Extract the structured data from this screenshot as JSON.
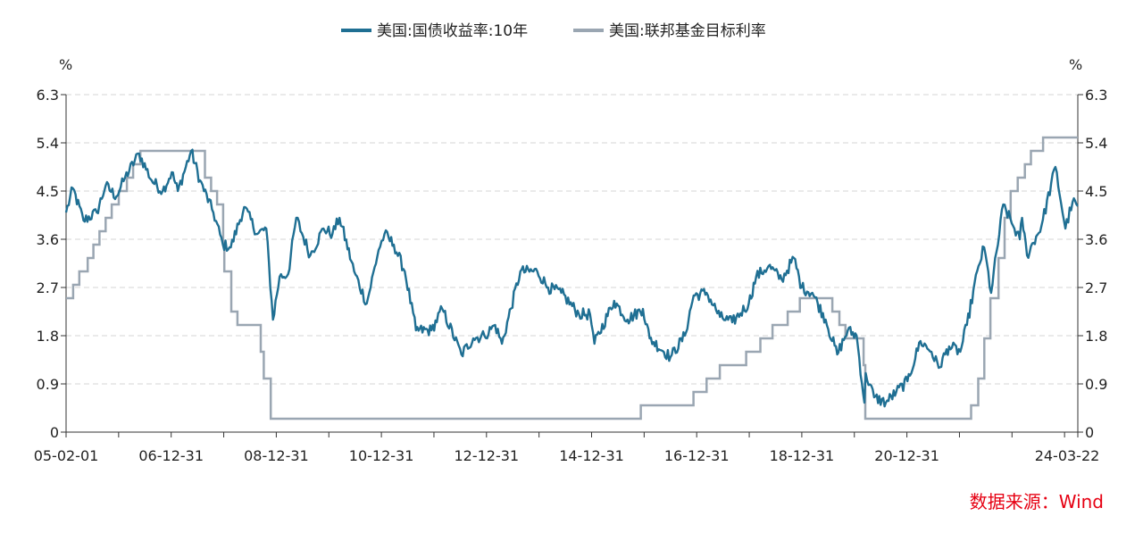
{
  "chart_data": {
    "type": "line",
    "title": "",
    "source": "数据来源：Wind",
    "y_unit_left": "%",
    "y_unit_right": "%",
    "ylim": [
      0,
      6.3
    ],
    "yticks": [
      "0",
      "0.9",
      "1.8",
      "2.7",
      "3.6",
      "4.5",
      "5.4",
      "6.3"
    ],
    "xticks": [
      "05-02-01",
      "06-12-31",
      "08-12-31",
      "10-12-31",
      "12-12-31",
      "14-12-31",
      "16-12-31",
      "18-12-31",
      "20-12-31",
      "24-03-22"
    ],
    "x_range": [
      "2005-02-01",
      "2024-03-22"
    ],
    "grid": true,
    "legend_position": "top",
    "series": [
      {
        "name": "美国:国债收益率:10年",
        "color": "#1f6f93",
        "points": [
          [
            "2005-02-01",
            4.1
          ],
          [
            "2005-03-20",
            4.55
          ],
          [
            "2005-06-01",
            3.95
          ],
          [
            "2005-09-01",
            4.1
          ],
          [
            "2005-11-01",
            4.6
          ],
          [
            "2006-01-15",
            4.4
          ],
          [
            "2006-03-15",
            4.75
          ],
          [
            "2006-06-20",
            5.2
          ],
          [
            "2006-09-15",
            4.7
          ],
          [
            "2006-11-30",
            4.5
          ],
          [
            "2007-02-01",
            4.85
          ],
          [
            "2007-03-15",
            4.5
          ],
          [
            "2007-06-15",
            5.25
          ],
          [
            "2007-08-15",
            4.7
          ],
          [
            "2007-11-15",
            4.1
          ],
          [
            "2008-01-20",
            3.5
          ],
          [
            "2008-03-15",
            3.45
          ],
          [
            "2008-06-15",
            4.2
          ],
          [
            "2008-09-15",
            3.7
          ],
          [
            "2008-11-15",
            3.8
          ],
          [
            "2008-12-31",
            2.1
          ],
          [
            "2009-02-15",
            2.9
          ],
          [
            "2009-04-15",
            2.95
          ],
          [
            "2009-06-10",
            4.0
          ],
          [
            "2009-09-15",
            3.3
          ],
          [
            "2009-12-15",
            3.8
          ],
          [
            "2010-02-15",
            3.7
          ],
          [
            "2010-04-05",
            4.0
          ],
          [
            "2010-07-15",
            3.0
          ],
          [
            "2010-10-10",
            2.4
          ],
          [
            "2010-12-31",
            3.4
          ],
          [
            "2011-02-10",
            3.7
          ],
          [
            "2011-04-15",
            3.5
          ],
          [
            "2011-06-30",
            3.0
          ],
          [
            "2011-09-15",
            1.9
          ],
          [
            "2011-12-31",
            1.9
          ],
          [
            "2012-03-15",
            2.3
          ],
          [
            "2012-07-25",
            1.45
          ],
          [
            "2012-10-15",
            1.75
          ],
          [
            "2012-12-31",
            1.8
          ],
          [
            "2013-03-15",
            2.0
          ],
          [
            "2013-05-01",
            1.65
          ],
          [
            "2013-09-05",
            3.0
          ],
          [
            "2013-12-31",
            3.0
          ],
          [
            "2014-03-15",
            2.7
          ],
          [
            "2014-06-15",
            2.6
          ],
          [
            "2014-10-15",
            2.2
          ],
          [
            "2014-12-31",
            2.2
          ],
          [
            "2015-01-30",
            1.65
          ],
          [
            "2015-06-15",
            2.45
          ],
          [
            "2015-09-15",
            2.1
          ],
          [
            "2015-12-31",
            2.3
          ],
          [
            "2016-02-15",
            1.75
          ],
          [
            "2016-07-08",
            1.4
          ],
          [
            "2016-10-15",
            1.8
          ],
          [
            "2016-12-15",
            2.55
          ],
          [
            "2017-03-15",
            2.6
          ],
          [
            "2017-06-15",
            2.15
          ],
          [
            "2017-09-08",
            2.05
          ],
          [
            "2017-12-31",
            2.4
          ],
          [
            "2018-02-20",
            2.9
          ],
          [
            "2018-05-17",
            3.1
          ],
          [
            "2018-08-15",
            2.85
          ],
          [
            "2018-11-08",
            3.25
          ],
          [
            "2018-12-31",
            2.7
          ],
          [
            "2019-03-15",
            2.6
          ],
          [
            "2019-06-15",
            2.1
          ],
          [
            "2019-09-03",
            1.45
          ],
          [
            "2019-11-15",
            1.9
          ],
          [
            "2020-01-15",
            1.8
          ],
          [
            "2020-03-09",
            0.55
          ],
          [
            "2020-03-18",
            1.1
          ],
          [
            "2020-05-15",
            0.65
          ],
          [
            "2020-08-04",
            0.55
          ],
          [
            "2020-10-15",
            0.75
          ],
          [
            "2020-12-31",
            0.95
          ],
          [
            "2021-03-31",
            1.7
          ],
          [
            "2021-06-15",
            1.5
          ],
          [
            "2021-08-04",
            1.2
          ],
          [
            "2021-10-15",
            1.6
          ],
          [
            "2021-12-31",
            1.5
          ],
          [
            "2022-02-15",
            2.0
          ],
          [
            "2022-05-06",
            3.1
          ],
          [
            "2022-06-14",
            3.45
          ],
          [
            "2022-08-01",
            2.6
          ],
          [
            "2022-10-24",
            4.25
          ],
          [
            "2022-12-31",
            3.85
          ],
          [
            "2023-02-15",
            3.6
          ],
          [
            "2023-03-03",
            4.0
          ],
          [
            "2023-04-06",
            3.3
          ],
          [
            "2023-07-15",
            3.85
          ],
          [
            "2023-10-19",
            4.95
          ],
          [
            "2023-12-27",
            3.8
          ],
          [
            "2024-02-15",
            4.3
          ],
          [
            "2024-03-22",
            4.22
          ]
        ]
      },
      {
        "name": "美国:联邦基金目标利率",
        "color": "#9aa6b2",
        "steps": [
          [
            "2005-02-01",
            2.5
          ],
          [
            "2005-03-22",
            2.75
          ],
          [
            "2005-05-03",
            3.0
          ],
          [
            "2005-06-30",
            3.25
          ],
          [
            "2005-08-09",
            3.5
          ],
          [
            "2005-09-20",
            3.75
          ],
          [
            "2005-11-01",
            4.0
          ],
          [
            "2005-12-13",
            4.25
          ],
          [
            "2006-01-31",
            4.5
          ],
          [
            "2006-03-28",
            4.75
          ],
          [
            "2006-05-10",
            5.0
          ],
          [
            "2006-06-29",
            5.25
          ],
          [
            "2007-09-18",
            4.75
          ],
          [
            "2007-10-31",
            4.5
          ],
          [
            "2007-12-11",
            4.25
          ],
          [
            "2008-01-22",
            3.5
          ],
          [
            "2008-01-30",
            3.0
          ],
          [
            "2008-03-18",
            2.25
          ],
          [
            "2008-04-30",
            2.0
          ],
          [
            "2008-10-08",
            1.5
          ],
          [
            "2008-10-29",
            1.0
          ],
          [
            "2008-12-16",
            0.25
          ],
          [
            "2015-12-16",
            0.5
          ],
          [
            "2016-12-14",
            0.75
          ],
          [
            "2017-03-15",
            1.0
          ],
          [
            "2017-06-14",
            1.25
          ],
          [
            "2017-12-13",
            1.5
          ],
          [
            "2018-03-21",
            1.75
          ],
          [
            "2018-06-13",
            2.0
          ],
          [
            "2018-09-26",
            2.25
          ],
          [
            "2018-12-19",
            2.5
          ],
          [
            "2019-07-31",
            2.25
          ],
          [
            "2019-09-18",
            2.0
          ],
          [
            "2019-10-30",
            1.75
          ],
          [
            "2020-03-03",
            1.25
          ],
          [
            "2020-03-15",
            0.25
          ],
          [
            "2022-03-16",
            0.5
          ],
          [
            "2022-05-04",
            1.0
          ],
          [
            "2022-06-15",
            1.75
          ],
          [
            "2022-07-27",
            2.5
          ],
          [
            "2022-09-21",
            3.25
          ],
          [
            "2022-11-02",
            4.0
          ],
          [
            "2022-12-14",
            4.5
          ],
          [
            "2023-02-01",
            4.75
          ],
          [
            "2023-03-22",
            5.0
          ],
          [
            "2023-05-03",
            5.25
          ],
          [
            "2023-07-26",
            5.5
          ],
          [
            "2024-03-22",
            5.5
          ]
        ]
      }
    ]
  }
}
